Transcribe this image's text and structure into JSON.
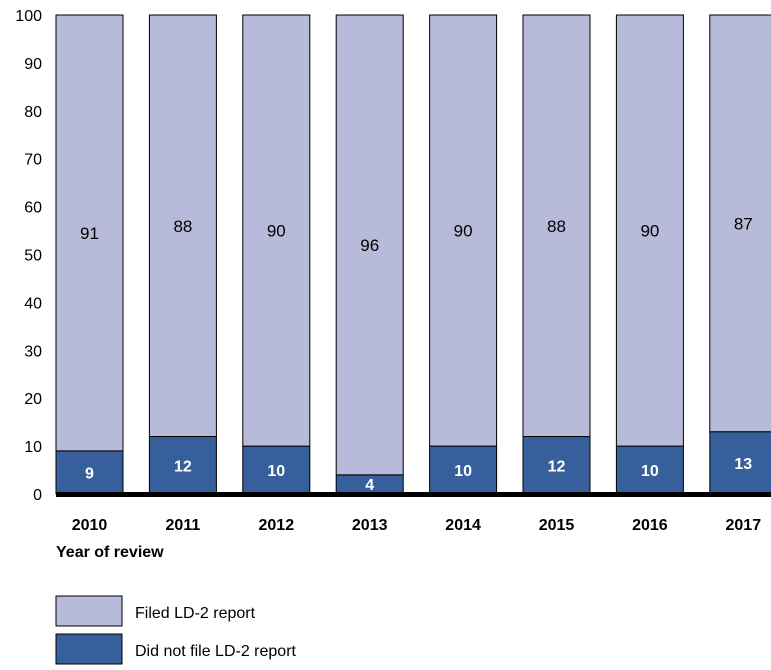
{
  "chart_data": {
    "type": "bar",
    "stacked": true,
    "categories": [
      "2010",
      "2011",
      "2012",
      "2013",
      "2014",
      "2015",
      "2016",
      "2017"
    ],
    "series": [
      {
        "name": "Did not file LD-2 report",
        "values": [
          9,
          12,
          10,
          4,
          10,
          12,
          10,
          13
        ],
        "color": "#365f9b"
      },
      {
        "name": "Filed LD-2 report",
        "values": [
          91,
          88,
          90,
          96,
          90,
          88,
          90,
          87
        ],
        "color": "#b7bad9"
      }
    ],
    "xlabel": "Year of review",
    "ylabel": "",
    "ylim": [
      0,
      100
    ],
    "yticks": [
      0,
      10,
      20,
      30,
      40,
      50,
      60,
      70,
      80,
      90,
      100
    ],
    "legend_position": "bottom-left",
    "grid": false
  }
}
